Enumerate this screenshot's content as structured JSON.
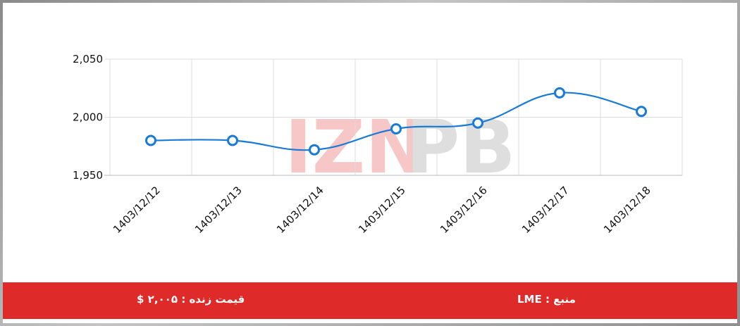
{
  "chart_data": {
    "type": "line",
    "x": [
      "1403/12/12",
      "1403/12/13",
      "1403/12/14",
      "1403/12/15",
      "1403/12/16",
      "1403/12/17",
      "1403/12/18"
    ],
    "series": [
      {
        "values": [
          1980,
          1980,
          1972,
          1990,
          1995,
          2021,
          2005
        ]
      }
    ],
    "yticks": [
      "1,950",
      "2,000",
      "2,050"
    ],
    "ylim": [
      1950,
      2050
    ],
    "grid": true,
    "line_color": "#1a7bd6"
  },
  "watermark": {
    "left": "IZN",
    "right": "PB"
  },
  "footer": {
    "source": "منبع : LME",
    "live_price": "قیمت زنده : ۲,۰۰۵ $"
  }
}
